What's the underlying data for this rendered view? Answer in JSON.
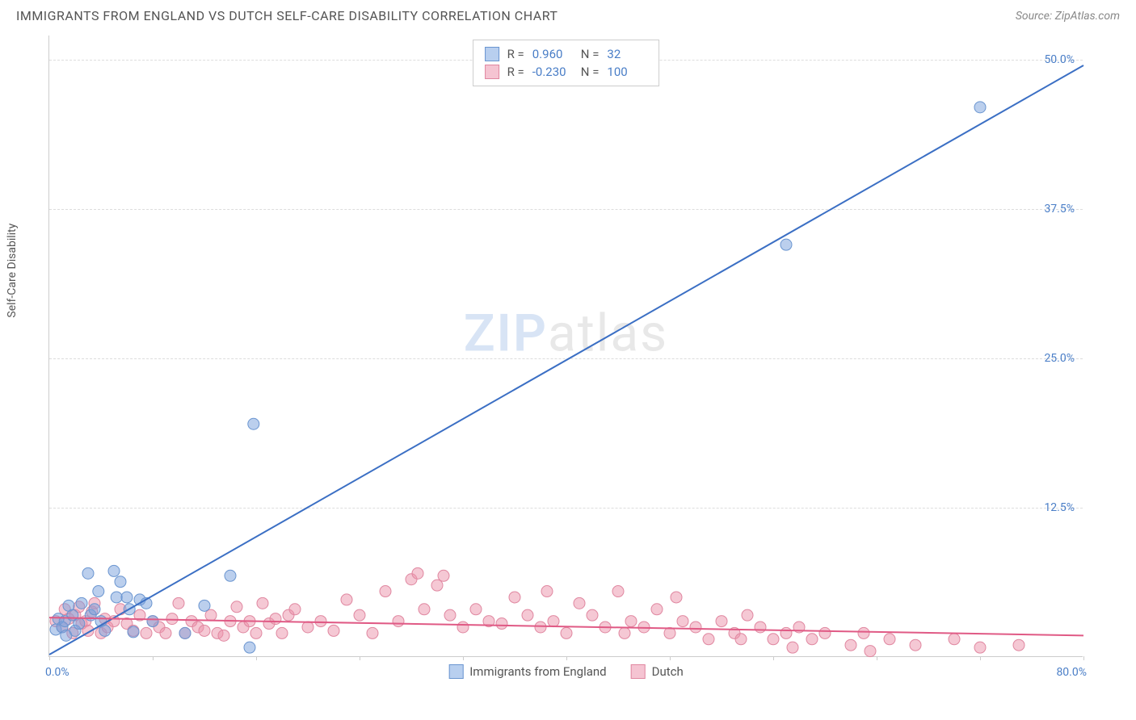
{
  "header": {
    "title": "IMMIGRANTS FROM ENGLAND VS DUTCH SELF-CARE DISABILITY CORRELATION CHART",
    "source": "Source: ZipAtlas.com"
  },
  "chart": {
    "type": "scatter",
    "y_axis_label": "Self-Care Disability",
    "xlim": [
      0,
      80
    ],
    "ylim": [
      0,
      52
    ],
    "x_origin_label": "0.0%",
    "x_max_label": "80.0%",
    "y_ticks": [
      {
        "value": 12.5,
        "label": "12.5%"
      },
      {
        "value": 25.0,
        "label": "25.0%"
      },
      {
        "value": 37.5,
        "label": "37.5%"
      },
      {
        "value": 50.0,
        "label": "50.0%"
      }
    ],
    "x_tick_positions": [
      0,
      8,
      16,
      24,
      32,
      40,
      48,
      56,
      64,
      72,
      80
    ],
    "grid_color": "#dddddd",
    "border_color": "#cccccc",
    "background_color": "#ffffff",
    "watermark": {
      "bold": "ZIP",
      "rest": "atlas"
    },
    "series": [
      {
        "name": "Immigrants from England",
        "color_fill": "rgba(120, 160, 220, 0.5)",
        "color_stroke": "#6a95d0",
        "swatch_fill": "#b8cfef",
        "swatch_stroke": "#6a95d0",
        "marker_radius": 7,
        "R": "0.960",
        "N": "32",
        "regression": {
          "x1": 0,
          "y1": 0.2,
          "x2": 80,
          "y2": 49.5,
          "stroke": "#3b6fc4",
          "width": 2
        },
        "points": [
          [
            0.5,
            2.3
          ],
          [
            0.7,
            3.2
          ],
          [
            1.0,
            2.5
          ],
          [
            1.2,
            3.0
          ],
          [
            1.3,
            1.8
          ],
          [
            1.5,
            4.3
          ],
          [
            1.8,
            3.5
          ],
          [
            2.0,
            2.2
          ],
          [
            2.3,
            2.8
          ],
          [
            2.5,
            4.5
          ],
          [
            3.0,
            7.0
          ],
          [
            3.2,
            3.5
          ],
          [
            3.5,
            4.0
          ],
          [
            3.8,
            5.5
          ],
          [
            4.0,
            3.0
          ],
          [
            4.3,
            2.2
          ],
          [
            5.0,
            7.2
          ],
          [
            5.2,
            5.0
          ],
          [
            5.5,
            6.3
          ],
          [
            6.0,
            5.0
          ],
          [
            6.2,
            4.0
          ],
          [
            6.5,
            2.1
          ],
          [
            7.0,
            4.8
          ],
          [
            7.5,
            4.5
          ],
          [
            10.5,
            2.0
          ],
          [
            12.0,
            4.3
          ],
          [
            14.0,
            6.8
          ],
          [
            15.5,
            0.8
          ],
          [
            15.8,
            19.5
          ],
          [
            57.0,
            34.5
          ],
          [
            72.0,
            46.0
          ],
          [
            8.0,
            3.0
          ]
        ]
      },
      {
        "name": "Dutch",
        "color_fill": "rgba(235, 145, 170, 0.5)",
        "color_stroke": "#e087a0",
        "swatch_fill": "#f5c4d2",
        "swatch_stroke": "#e087a0",
        "marker_radius": 7,
        "R": "-0.230",
        "N": "100",
        "regression": {
          "x1": 0,
          "y1": 3.3,
          "x2": 80,
          "y2": 1.8,
          "stroke": "#e05a85",
          "width": 2
        },
        "points": [
          [
            0.5,
            3.0
          ],
          [
            1.0,
            2.5
          ],
          [
            1.2,
            4.0
          ],
          [
            1.5,
            3.2
          ],
          [
            1.8,
            2.0
          ],
          [
            2.0,
            3.5
          ],
          [
            2.3,
            4.2
          ],
          [
            2.5,
            2.8
          ],
          [
            2.8,
            3.0
          ],
          [
            3.0,
            2.2
          ],
          [
            3.3,
            3.8
          ],
          [
            3.5,
            4.5
          ],
          [
            4.0,
            2.0
          ],
          [
            4.3,
            3.2
          ],
          [
            4.5,
            2.5
          ],
          [
            5.0,
            3.0
          ],
          [
            5.5,
            4.0
          ],
          [
            6.0,
            2.8
          ],
          [
            6.5,
            2.2
          ],
          [
            7.0,
            3.5
          ],
          [
            7.5,
            2.0
          ],
          [
            8.0,
            3.0
          ],
          [
            8.5,
            2.5
          ],
          [
            9.0,
            2.0
          ],
          [
            9.5,
            3.2
          ],
          [
            10.0,
            4.5
          ],
          [
            10.5,
            2.0
          ],
          [
            11.0,
            3.0
          ],
          [
            11.5,
            2.5
          ],
          [
            12.0,
            2.2
          ],
          [
            12.5,
            3.5
          ],
          [
            13.0,
            2.0
          ],
          [
            13.5,
            1.8
          ],
          [
            14.0,
            3.0
          ],
          [
            14.5,
            4.2
          ],
          [
            15.0,
            2.5
          ],
          [
            15.5,
            3.0
          ],
          [
            16.0,
            2.0
          ],
          [
            16.5,
            4.5
          ],
          [
            17.0,
            2.8
          ],
          [
            17.5,
            3.2
          ],
          [
            18.0,
            2.0
          ],
          [
            18.5,
            3.5
          ],
          [
            19.0,
            4.0
          ],
          [
            20.0,
            2.5
          ],
          [
            21.0,
            3.0
          ],
          [
            22.0,
            2.2
          ],
          [
            23.0,
            4.8
          ],
          [
            24.0,
            3.5
          ],
          [
            25.0,
            2.0
          ],
          [
            26.0,
            5.5
          ],
          [
            27.0,
            3.0
          ],
          [
            28.0,
            6.5
          ],
          [
            28.5,
            7.0
          ],
          [
            29.0,
            4.0
          ],
          [
            30.0,
            6.0
          ],
          [
            30.5,
            6.8
          ],
          [
            31.0,
            3.5
          ],
          [
            32.0,
            2.5
          ],
          [
            33.0,
            4.0
          ],
          [
            34.0,
            3.0
          ],
          [
            35.0,
            2.8
          ],
          [
            36.0,
            5.0
          ],
          [
            37.0,
            3.5
          ],
          [
            38.0,
            2.5
          ],
          [
            38.5,
            5.5
          ],
          [
            39.0,
            3.0
          ],
          [
            40.0,
            2.0
          ],
          [
            41.0,
            4.5
          ],
          [
            42.0,
            3.5
          ],
          [
            43.0,
            2.5
          ],
          [
            44.0,
            5.5
          ],
          [
            44.5,
            2.0
          ],
          [
            45.0,
            3.0
          ],
          [
            46.0,
            2.5
          ],
          [
            47.0,
            4.0
          ],
          [
            48.0,
            2.0
          ],
          [
            48.5,
            5.0
          ],
          [
            49.0,
            3.0
          ],
          [
            50.0,
            2.5
          ],
          [
            51.0,
            1.5
          ],
          [
            52.0,
            3.0
          ],
          [
            53.0,
            2.0
          ],
          [
            53.5,
            1.5
          ],
          [
            54.0,
            3.5
          ],
          [
            55.0,
            2.5
          ],
          [
            56.0,
            1.5
          ],
          [
            57.0,
            2.0
          ],
          [
            57.5,
            0.8
          ],
          [
            58.0,
            2.5
          ],
          [
            59.0,
            1.5
          ],
          [
            60.0,
            2.0
          ],
          [
            62.0,
            1.0
          ],
          [
            63.0,
            2.0
          ],
          [
            63.5,
            0.5
          ],
          [
            65.0,
            1.5
          ],
          [
            67.0,
            1.0
          ],
          [
            70.0,
            1.5
          ],
          [
            72.0,
            0.8
          ],
          [
            75.0,
            1.0
          ]
        ]
      }
    ],
    "bottom_legend": [
      {
        "label": "Immigrants from England",
        "fill": "#b8cfef",
        "stroke": "#6a95d0"
      },
      {
        "label": "Dutch",
        "fill": "#f5c4d2",
        "stroke": "#e087a0"
      }
    ]
  }
}
